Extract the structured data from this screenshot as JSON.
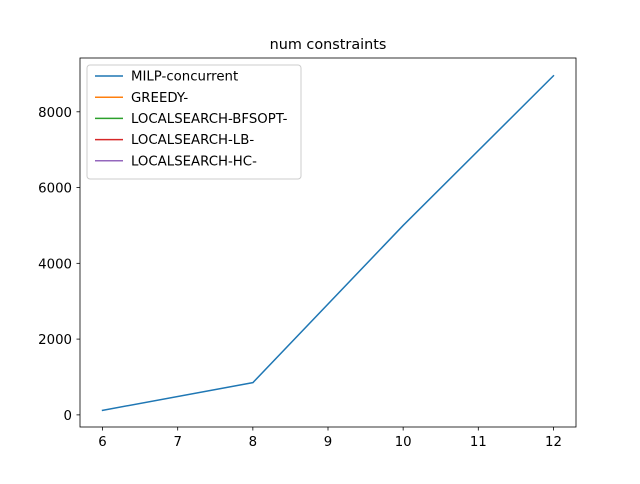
{
  "chart_data": {
    "type": "line",
    "title": "num constraints",
    "xlabel": "",
    "ylabel": "",
    "xlim": [
      5.7,
      12.3
    ],
    "ylim": [
      -320,
      9420
    ],
    "xticks": [
      6,
      7,
      8,
      9,
      10,
      11,
      12
    ],
    "yticks": [
      0,
      2000,
      4000,
      6000,
      8000
    ],
    "grid": false,
    "legend_position": "upper-left",
    "series": [
      {
        "name": "MILP-concurrent",
        "color": "#1f77b4",
        "x": [
          6,
          8,
          10,
          12
        ],
        "y": [
          120,
          850,
          5000,
          8950
        ]
      },
      {
        "name": "GREEDY-",
        "color": "#ff7f0e",
        "x": [],
        "y": []
      },
      {
        "name": "LOCALSEARCH-BFSOPT-",
        "color": "#2ca02c",
        "x": [],
        "y": []
      },
      {
        "name": "LOCALSEARCH-LB-",
        "color": "#d62728",
        "x": [],
        "y": []
      },
      {
        "name": "LOCALSEARCH-HC-",
        "color": "#9467bd",
        "x": [],
        "y": []
      }
    ]
  }
}
